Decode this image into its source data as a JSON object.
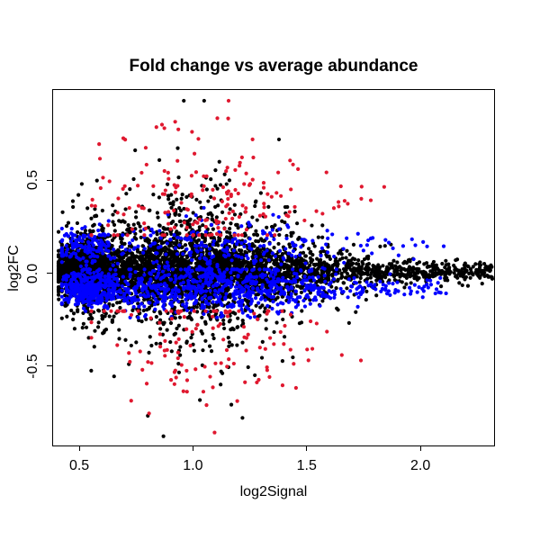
{
  "window": {
    "background": "#ffffff"
  },
  "chart_data": {
    "type": "scatter",
    "title": "Fold change vs average abundance",
    "xlabel": "log2Signal",
    "ylabel": "log2FC",
    "xlim": [
      0.381,
      2.328
    ],
    "ylim": [
      -0.93,
      0.988
    ],
    "xticks": [
      {
        "value": 0.5,
        "label": "0.5"
      },
      {
        "value": 1.0,
        "label": "1.0"
      },
      {
        "value": 1.5,
        "label": "1.5"
      },
      {
        "value": 2.0,
        "label": "2.0"
      }
    ],
    "yticks": [
      {
        "value": -0.5,
        "label": "-0.5"
      },
      {
        "value": 0.0,
        "label": "0.0"
      },
      {
        "value": 0.5,
        "label": "0.5"
      }
    ],
    "grid": false,
    "legend": false,
    "frame": true,
    "point_radius": 2.1,
    "series": [
      {
        "name": "black-points",
        "color": "#000000",
        "n": 5600,
        "x_mix": [
          {
            "w": 0.3,
            "type": "norm",
            "mu": 0.52,
            "sd": 0.065,
            "min": 0.405,
            "max": 0.85
          },
          {
            "w": 0.46,
            "type": "norm",
            "mu": 1.02,
            "sd": 0.29,
            "min": 0.42,
            "max": 2.1
          },
          {
            "w": 0.24,
            "type": "pow",
            "base": 0.44,
            "range": 1.88,
            "exp": 1.4,
            "min": 0.44,
            "max": 2.325
          }
        ],
        "y_mix": [
          {
            "w": 0.57,
            "mu": 0.012,
            "sd_base": 0.02,
            "sd_amp": 0.065,
            "sd_center": 1.03,
            "sd_width": 0.4,
            "min": -0.88,
            "max": 0.93
          },
          {
            "w": 0.35,
            "mu": 0.008,
            "sd_base": 0.03,
            "sd_amp": 0.17,
            "sd_center": 1.03,
            "sd_width": 0.36,
            "min": -0.88,
            "max": 0.93
          },
          {
            "w": 0.08,
            "mu": 0.0,
            "sd_base": 0.05,
            "sd_amp": 0.35,
            "sd_center": 1.03,
            "sd_width": 0.36,
            "min": -0.88,
            "max": 0.93
          }
        ]
      },
      {
        "name": "blue-points",
        "color": "#0000ff",
        "n": 1450,
        "x_mix": [
          {
            "w": 0.26,
            "type": "norm",
            "mu": 0.54,
            "sd": 0.07,
            "min": 0.42,
            "max": 0.85
          },
          {
            "w": 0.5,
            "type": "norm",
            "mu": 1.08,
            "sd": 0.3,
            "min": 0.44,
            "max": 2.05
          },
          {
            "w": 0.24,
            "type": "pow",
            "base": 0.46,
            "range": 1.66,
            "exp": 1.25,
            "min": 0.46,
            "max": 2.12
          }
        ],
        "y_mix": [
          {
            "w": 0.72,
            "mu": -0.085,
            "sd_base": 0.022,
            "sd_amp": 0.05,
            "sd_center": 1.05,
            "sd_width": 0.42,
            "min": -0.24,
            "max": 0.02
          },
          {
            "w": 0.28,
            "mu": 0.135,
            "sd_base": 0.03,
            "sd_amp": 0.055,
            "sd_center": 1.05,
            "sd_width": 0.42,
            "min": -0.02,
            "max": 0.42
          }
        ]
      },
      {
        "name": "red-points",
        "color": "#e0182f",
        "n": 300,
        "x_mix": [
          {
            "w": 1.0,
            "type": "norm",
            "mu": 1.06,
            "sd": 0.27,
            "min": 0.55,
            "max": 2.03
          }
        ],
        "y_mix": [
          {
            "w": 0.55,
            "mu": 0.4,
            "sd_base": 0.07,
            "sd_amp": 0.15,
            "sd_center": 1.0,
            "sd_width": 0.35,
            "min": 0.205,
            "max": 0.93
          },
          {
            "w": 0.45,
            "mu": -0.38,
            "sd_base": 0.07,
            "sd_amp": 0.14,
            "sd_center": 1.0,
            "sd_width": 0.35,
            "min": -0.86,
            "max": -0.205
          }
        ]
      }
    ]
  }
}
